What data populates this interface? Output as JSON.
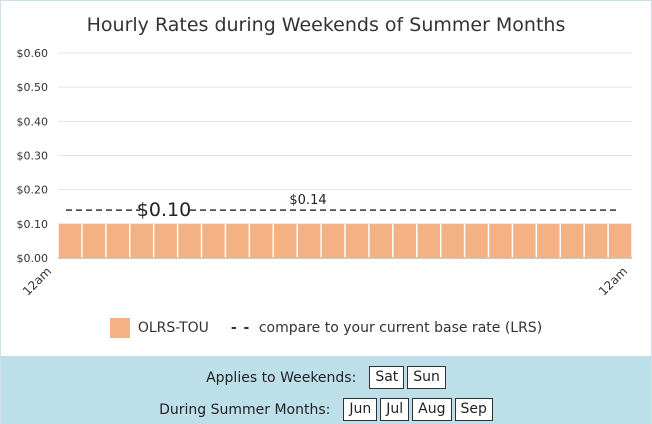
{
  "chart_data": {
    "type": "bar",
    "title": "Hourly Rates during Weekends of Summer Months",
    "ylim": [
      0,
      0.6
    ],
    "y_ticks": [
      "$0.60",
      "$0.50",
      "$0.40",
      "$0.30",
      "$0.20",
      "$0.10",
      "$0.00"
    ],
    "y_tick_values": [
      0.6,
      0.5,
      0.4,
      0.3,
      0.2,
      0.1,
      0.0
    ],
    "x_tick_labels": [
      "12am",
      "12am"
    ],
    "series": [
      {
        "name": "OLRS-TOU",
        "color": "#f4b183",
        "values": [
          0.1,
          0.1,
          0.1,
          0.1,
          0.1,
          0.1,
          0.1,
          0.1,
          0.1,
          0.1,
          0.1,
          0.1,
          0.1,
          0.1,
          0.1,
          0.1,
          0.1,
          0.1,
          0.1,
          0.1,
          0.1,
          0.1,
          0.1,
          0.1
        ]
      },
      {
        "name": "compare to your current base rate (LRS)",
        "style": "dashed",
        "value": 0.14
      }
    ],
    "annotations": [
      "$0.10",
      "$0.14"
    ],
    "grid": true,
    "legend_position": "bottom"
  },
  "legend": {
    "tou_label": "OLRS-TOU",
    "lrs_symbol": "- -",
    "lrs_label": "compare to your current base rate (LRS)"
  },
  "panel": {
    "weekends_label": "Applies to Weekends:",
    "days": [
      "Sat",
      "Sun"
    ],
    "months_label": "During Summer Months:",
    "months": [
      "Jun",
      "Jul",
      "Aug",
      "Sep"
    ]
  }
}
